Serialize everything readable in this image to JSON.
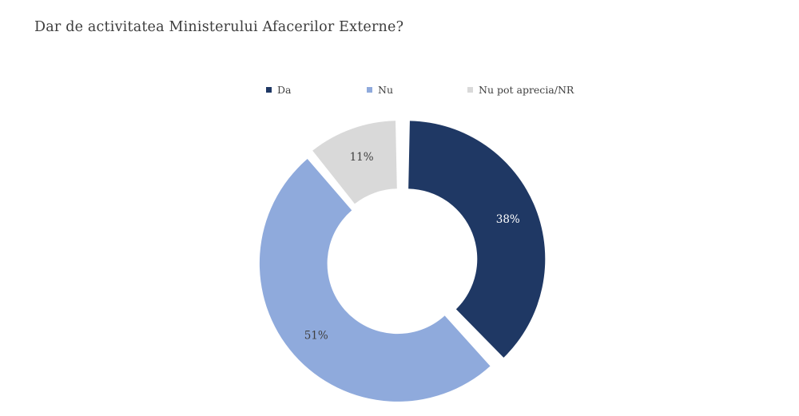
{
  "title": "Dar de activitatea Ministerului Afacerilor Externe?",
  "legend": {
    "items": [
      {
        "label": "Da",
        "color": "#1f3864"
      },
      {
        "label": "Nu",
        "color": "#8faadc"
      },
      {
        "label": "Nu pot aprecia/NR",
        "color": "#d9d9d9"
      }
    ]
  },
  "chart_data": {
    "type": "pie",
    "subtype": "donut",
    "title": "Dar de activitatea Ministerului Afacerilor Externe?",
    "categories": [
      "Da",
      "Nu",
      "Nu pot aprecia/NR"
    ],
    "values": [
      38,
      51,
      11
    ],
    "labels": [
      "38%",
      "51%",
      "11%"
    ],
    "unit": "percent",
    "colors": [
      "#1f3864",
      "#8faadc",
      "#d9d9d9"
    ],
    "label_colors": [
      "#ffffff",
      "#404040",
      "#404040"
    ],
    "start_angle_deg": 0,
    "direction": "clockwise",
    "inner_radius_ratio": 0.51,
    "legend_position": "top",
    "gaps_between_slices": true
  }
}
